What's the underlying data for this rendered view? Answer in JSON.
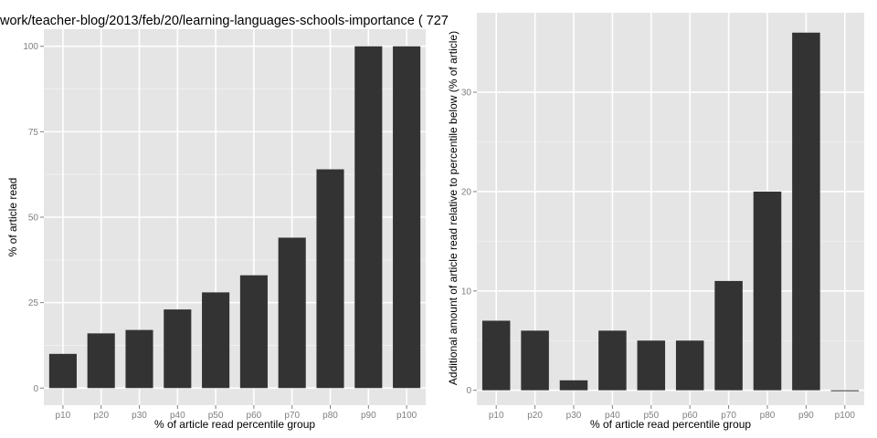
{
  "chart_data": [
    {
      "type": "bar",
      "title": "work/teacher-blog/2013/feb/20/learning-languages-schools-importance ( 727",
      "xlabel": "% of article read percentile group",
      "ylabel": "% of article read",
      "categories": [
        "p10",
        "p20",
        "p30",
        "p40",
        "p50",
        "p60",
        "p70",
        "p80",
        "p90",
        "p100"
      ],
      "values": [
        10,
        16,
        17,
        23,
        28,
        33,
        44,
        64,
        100,
        100
      ],
      "ylim": [
        -5,
        105
      ],
      "yticks": [
        0,
        25,
        50,
        75,
        100
      ],
      "bar_color": "#333333",
      "panel_bg": "#e5e5e5",
      "grid": true
    },
    {
      "type": "bar",
      "title": "",
      "xlabel": "% of article read percentile group",
      "ylabel": "Additional amount of article read relative to percentile below (% of article)",
      "categories": [
        "p10",
        "p20",
        "p30",
        "p40",
        "p50",
        "p60",
        "p70",
        "p80",
        "p90",
        "p100"
      ],
      "values": [
        7,
        6,
        1,
        6,
        5,
        5,
        11,
        20,
        36,
        0
      ],
      "ylim": [
        -1.5,
        38
      ],
      "yticks": [
        0,
        10,
        20,
        30
      ],
      "bar_color": "#333333",
      "panel_bg": "#e5e5e5",
      "grid": true
    }
  ]
}
